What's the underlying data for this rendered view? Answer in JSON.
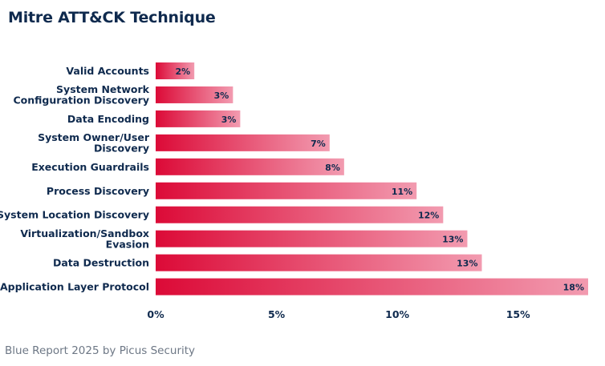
{
  "title": "Mitre ATT&CK Technique",
  "footer": "Blue Report 2025 by Picus Security",
  "colors": {
    "bar_start": "#dc0a37",
    "bar_end": "#f29bb0",
    "text": "#0f2a4e",
    "footer": "#6d7785"
  },
  "chart_data": {
    "type": "bar",
    "orientation": "horizontal",
    "categories": [
      "Valid Accounts",
      "System Network\nConfiguration Discovery",
      "Data Encoding",
      "System Owner/User\nDiscovery",
      "Execution Guardrails",
      "Process Discovery",
      "System Location Discovery",
      "Virtualization/Sandbox\nEvasion",
      "Data Destruction",
      "Application Layer Protocol"
    ],
    "values": [
      1.6,
      3.2,
      3.5,
      7.2,
      7.8,
      10.8,
      11.9,
      12.9,
      13.5,
      17.9
    ],
    "data_labels": [
      "2%",
      "3%",
      "3%",
      "7%",
      "8%",
      "11%",
      "12%",
      "13%",
      "13%",
      "18%"
    ],
    "xlim": [
      0,
      17.9
    ],
    "xticks": [
      0,
      5,
      10,
      15
    ],
    "xtick_labels": [
      "0%",
      "5%",
      "10%",
      "15%"
    ],
    "grid": false,
    "legend": "none"
  }
}
